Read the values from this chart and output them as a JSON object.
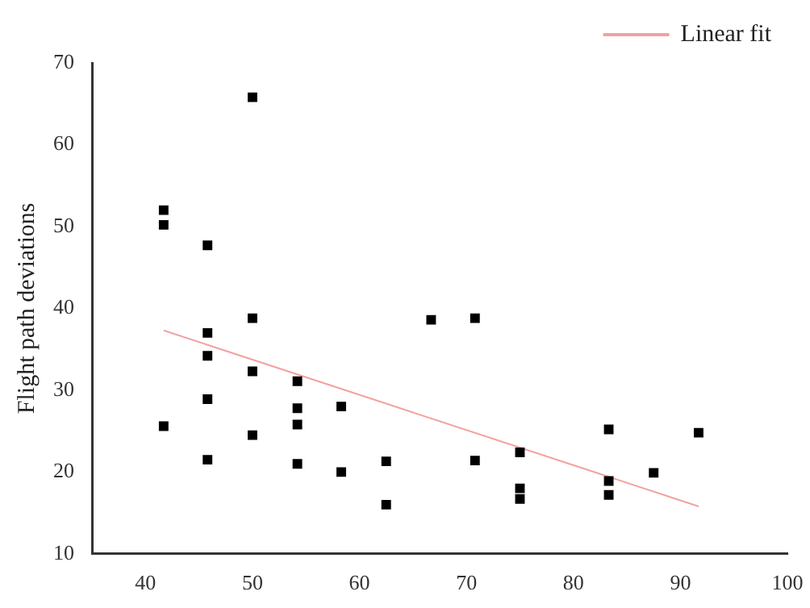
{
  "chart_data": {
    "type": "scatter",
    "ylabel": "Flight path deviations",
    "xlim": [
      35,
      100
    ],
    "xticks": [
      40,
      50,
      60,
      70,
      80,
      90,
      100
    ],
    "ylim": [
      10,
      70
    ],
    "yticks": [
      10,
      20,
      30,
      40,
      50,
      60,
      70
    ],
    "grid": false,
    "legend": "top right",
    "marker": "square",
    "series": [
      {
        "color": "#000000",
        "x": [
          41.7,
          41.7,
          41.7,
          45.8,
          45.8,
          45.8,
          45.8,
          45.8,
          50,
          50,
          50,
          50,
          54.2,
          54.2,
          54.2,
          54.2,
          58.3,
          58.3,
          62.5,
          62.5,
          66.7,
          70.8,
          70.8,
          75,
          75,
          75,
          83.3,
          83.3,
          83.3,
          87.5,
          91.7
        ],
        "values": [
          52,
          50.2,
          25.6,
          47.7,
          37,
          34.2,
          28.9,
          21.5,
          65.8,
          38.8,
          32.3,
          24.5,
          31.1,
          27.8,
          25.8,
          21,
          28,
          20,
          21.3,
          16,
          38.6,
          38.8,
          21.4,
          22.4,
          18,
          16.7,
          25.2,
          18.9,
          17.2,
          19.9,
          24.8
        ]
      },
      {
        "type": "line",
        "marker": "none",
        "name": "Linear fit",
        "color": "#f4a0a0",
        "x": [
          41.7,
          91.7
        ],
        "values": [
          37.3,
          15.8
        ]
      }
    ]
  }
}
